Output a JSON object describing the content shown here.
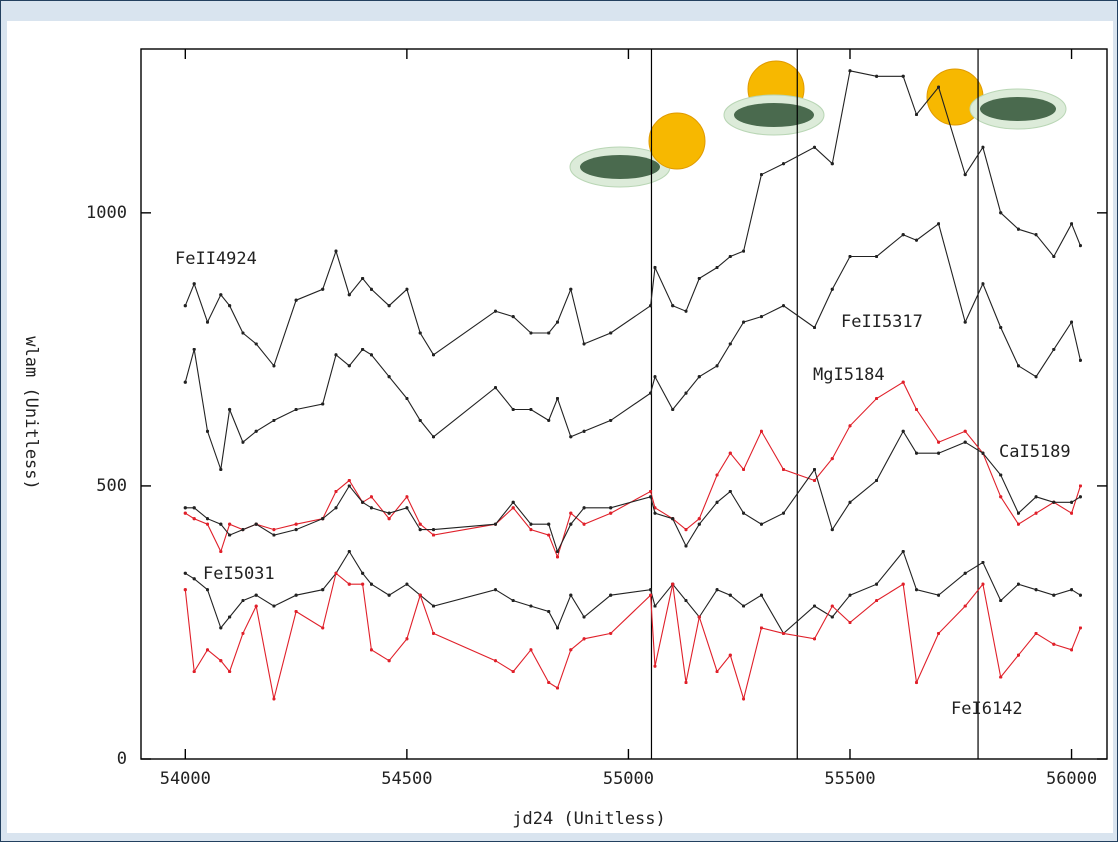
{
  "chart_data": {
    "type": "line",
    "x_label": "jd24 (Unitless)",
    "y_label": "wlam (Unitless)",
    "xlim": [
      53900,
      56080
    ],
    "ylim": [
      0,
      1300
    ],
    "xticks": [
      54000,
      54500,
      55000,
      55500,
      56000
    ],
    "yticks": [
      0,
      500,
      1000
    ],
    "vlines": [
      55052,
      55381,
      55789
    ],
    "x": [
      54000,
      54020,
      54050,
      54080,
      54100,
      54130,
      54160,
      54200,
      54250,
      54310,
      54340,
      54370,
      54400,
      54420,
      54460,
      54500,
      54530,
      54560,
      54700,
      54740,
      54780,
      54820,
      54840,
      54870,
      54900,
      54960,
      55050,
      55060,
      55100,
      55130,
      55160,
      55200,
      55230,
      55260,
      55300,
      55350,
      55420,
      55460,
      55500,
      55560,
      55620,
      55650,
      55700,
      55760,
      55800,
      55840,
      55880,
      55920,
      55960,
      56000,
      56020
    ],
    "series": [
      {
        "name": "FeII4924",
        "color": "#222222",
        "values": [
          830,
          870,
          800,
          850,
          830,
          780,
          760,
          720,
          840,
          860,
          930,
          850,
          880,
          860,
          830,
          860,
          780,
          740,
          820,
          810,
          780,
          780,
          800,
          860,
          760,
          780,
          830,
          900,
          830,
          820,
          880,
          900,
          920,
          930,
          1070,
          1090,
          1120,
          1090,
          1260,
          1250,
          1250,
          1180,
          1230,
          1070,
          1120,
          1000,
          970,
          960,
          920,
          980,
          940
        ]
      },
      {
        "name": "FeII5317",
        "color": "#222222",
        "values": [
          690,
          750,
          600,
          530,
          640,
          580,
          600,
          620,
          640,
          650,
          740,
          720,
          750,
          740,
          700,
          660,
          620,
          590,
          680,
          640,
          640,
          620,
          660,
          590,
          600,
          620,
          670,
          700,
          640,
          670,
          700,
          720,
          760,
          800,
          810,
          830,
          790,
          860,
          920,
          920,
          960,
          950,
          980,
          800,
          870,
          790,
          720,
          700,
          750,
          800,
          730
        ]
      },
      {
        "name": "MgI5184",
        "color": "#e0202a",
        "values": [
          450,
          440,
          430,
          380,
          430,
          420,
          430,
          420,
          430,
          440,
          490,
          510,
          470,
          480,
          440,
          480,
          430,
          410,
          430,
          460,
          420,
          410,
          370,
          450,
          430,
          450,
          490,
          460,
          440,
          420,
          440,
          520,
          560,
          530,
          600,
          530,
          510,
          550,
          610,
          660,
          690,
          640,
          580,
          600,
          560,
          480,
          430,
          450,
          470,
          450,
          500
        ]
      },
      {
        "name": "CaI5189",
        "color": "#222222",
        "values": [
          460,
          460,
          440,
          430,
          410,
          420,
          430,
          410,
          420,
          440,
          460,
          500,
          470,
          460,
          450,
          460,
          420,
          420,
          430,
          470,
          430,
          430,
          380,
          430,
          460,
          460,
          480,
          450,
          440,
          390,
          430,
          470,
          490,
          450,
          430,
          450,
          530,
          420,
          470,
          510,
          600,
          560,
          560,
          580,
          560,
          520,
          450,
          480,
          470,
          470,
          480
        ]
      },
      {
        "name": "FeI5031",
        "color": "#222222",
        "values": [
          340,
          330,
          310,
          240,
          260,
          290,
          300,
          280,
          300,
          310,
          340,
          380,
          340,
          320,
          300,
          320,
          300,
          280,
          310,
          290,
          280,
          270,
          240,
          300,
          260,
          300,
          310,
          280,
          320,
          290,
          260,
          310,
          300,
          280,
          300,
          230,
          280,
          260,
          300,
          320,
          380,
          310,
          300,
          340,
          360,
          290,
          320,
          310,
          300,
          310,
          300
        ]
      },
      {
        "name": "FeI6142",
        "color": "#e0202a",
        "values": [
          310,
          160,
          200,
          180,
          160,
          230,
          280,
          110,
          270,
          240,
          340,
          320,
          320,
          200,
          180,
          220,
          300,
          230,
          180,
          160,
          200,
          140,
          130,
          200,
          220,
          230,
          300,
          170,
          320,
          140,
          260,
          160,
          190,
          110,
          240,
          230,
          220,
          280,
          250,
          290,
          320,
          140,
          230,
          280,
          320,
          150,
          190,
          230,
          210,
          200,
          240
        ]
      }
    ]
  }
}
